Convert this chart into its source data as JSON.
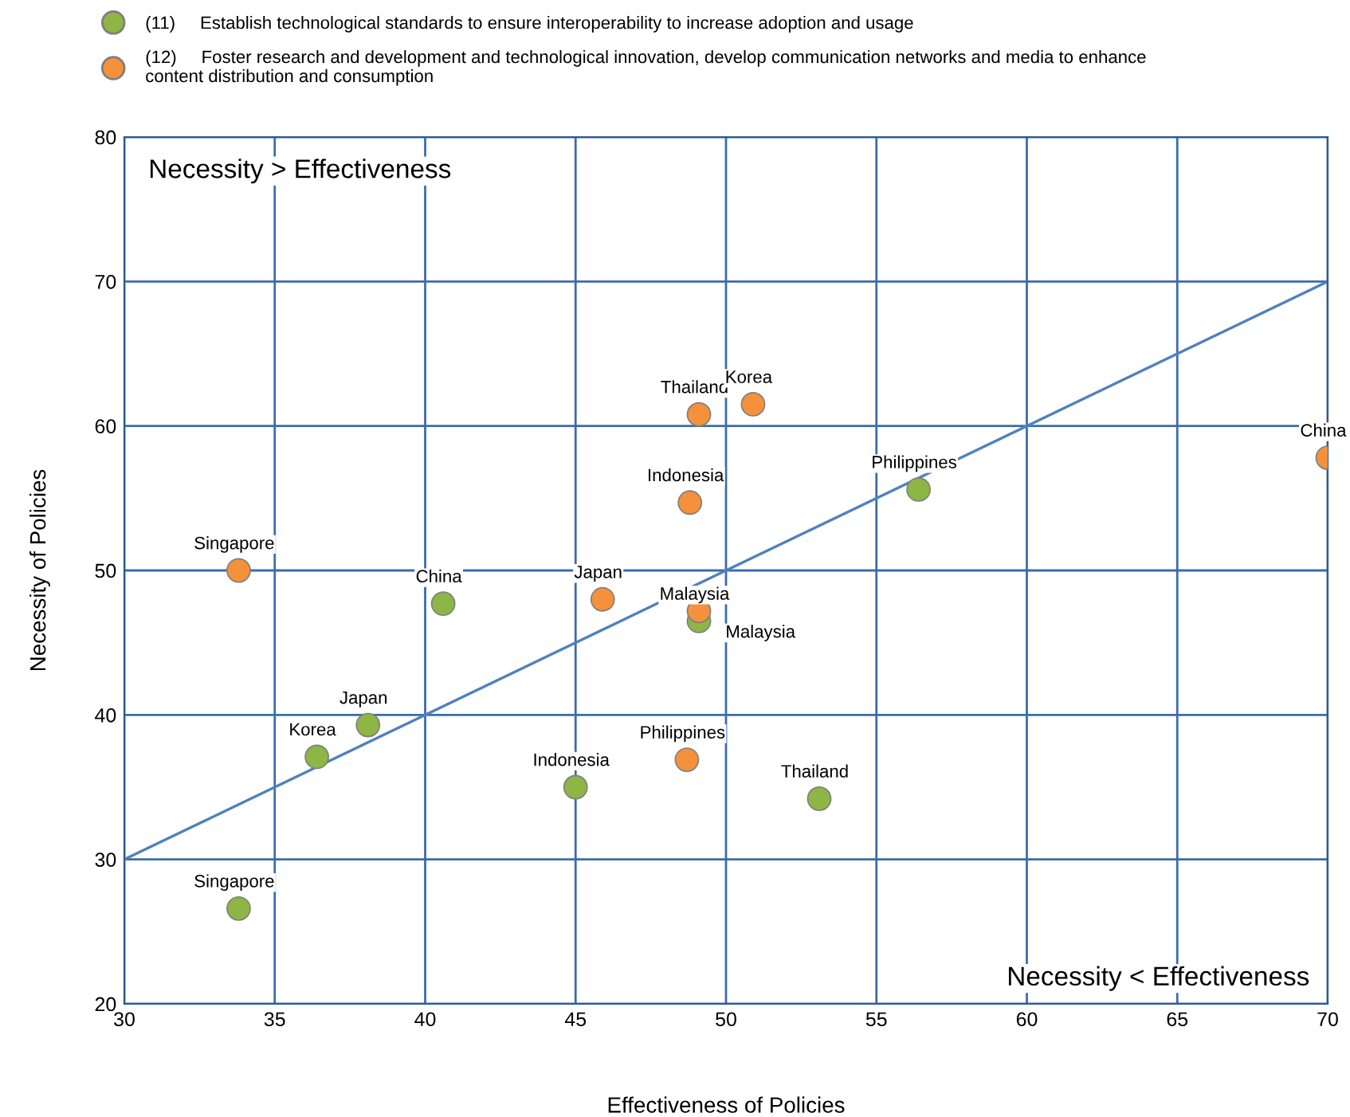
{
  "chart_data": {
    "type": "scatter",
    "xlabel": "Effectiveness of Policies",
    "ylabel": "Necessity of Policies",
    "xlim": [
      30,
      70
    ],
    "ylim": [
      20,
      80
    ],
    "xticks": [
      30,
      35,
      40,
      45,
      50,
      55,
      60,
      65,
      70
    ],
    "yticks": [
      20,
      30,
      40,
      50,
      60,
      70,
      80
    ],
    "grid": true,
    "legend": "top",
    "marker": "circle",
    "series": [
      {
        "name": "(11)     Establish technological standards to ensure interoperability to increase adoption and usage",
        "color": "#8db645",
        "x": [
          33.8,
          36.4,
          38.1,
          40.6,
          45.0,
          53.1,
          56.4,
          49.1
        ],
        "values": [
          26.6,
          37.1,
          39.3,
          47.7,
          35.0,
          34.2,
          55.6,
          46.5
        ]
      },
      {
        "name": "(12)     Foster research and development and technological innovation, develop communication networks and media to enhance\ncontent distribution and consumption",
        "color": "#f5913a",
        "x": [
          33.8,
          45.9,
          48.8,
          49.1,
          50.9,
          49.1,
          48.7,
          70.0
        ],
        "values": [
          50.0,
          48.0,
          54.7,
          60.8,
          61.5,
          47.2,
          36.9,
          57.8
        ]
      },
      {
        "type": "line",
        "color": "#4f81bd",
        "x": [
          30,
          70
        ],
        "values": [
          30,
          70
        ],
        "marker": "none"
      }
    ],
    "annotations": [
      {
        "text": "Singapore",
        "x": 33.8,
        "y": 26.6
      },
      {
        "text": "Korea",
        "x": 36.4,
        "y": 37.1
      },
      {
        "text": "Japan",
        "x": 38.1,
        "y": 39.3
      },
      {
        "text": "China",
        "x": 40.6,
        "y": 47.7
      },
      {
        "text": "Indonesia",
        "x": 45.0,
        "y": 35.0
      },
      {
        "text": "Thailand",
        "x": 53.1,
        "y": 34.2
      },
      {
        "text": "Philippines",
        "x": 56.4,
        "y": 55.6
      },
      {
        "text": "Malaysia",
        "x": 49.1,
        "y": 46.5
      },
      {
        "text": "Singapore",
        "x": 33.8,
        "y": 50.0
      },
      {
        "text": "Japan",
        "x": 45.9,
        "y": 48.0
      },
      {
        "text": "Indonesia",
        "x": 48.8,
        "y": 54.7
      },
      {
        "text": "Thailand",
        "x": 49.1,
        "y": 60.8
      },
      {
        "text": "Korea",
        "x": 50.9,
        "y": 61.5
      },
      {
        "text": "Malaysia",
        "x": 49.1,
        "y": 47.2
      },
      {
        "text": "Philippines",
        "x": 48.7,
        "y": 36.9
      },
      {
        "text": "China",
        "x": 70.0,
        "y": 57.8
      },
      "Necessity > Effectiveness",
      "Necessity < Effectiveness"
    ]
  }
}
